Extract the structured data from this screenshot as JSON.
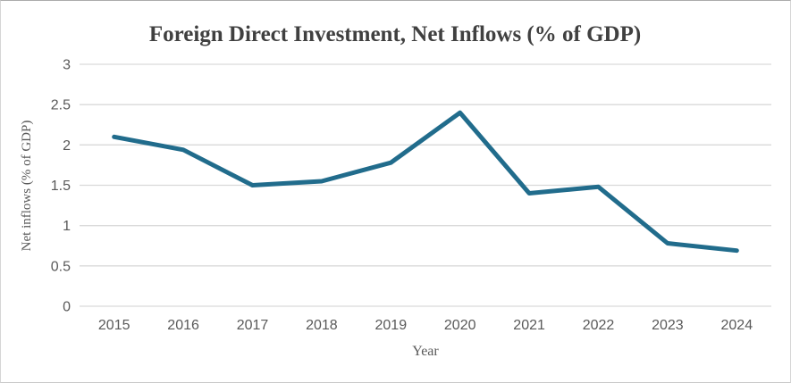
{
  "chart_data": {
    "type": "line",
    "title": "Foreign Direct Investment, Net Inflows (% of GDP)",
    "xlabel": "Year",
    "ylabel": "Net inflows (% of GDP)",
    "categories": [
      "2015",
      "2016",
      "2017",
      "2018",
      "2019",
      "2020",
      "2021",
      "2022",
      "2023",
      "2024"
    ],
    "series": [
      {
        "name": "Net inflows (% of GDP)",
        "values": [
          2.1,
          1.94,
          1.5,
          1.55,
          1.78,
          2.4,
          1.4,
          1.48,
          0.78,
          0.69
        ]
      }
    ],
    "ylim": [
      0,
      3
    ],
    "ytick_step": 0.5,
    "ytick_labels": [
      "0",
      "0.5",
      "1",
      "1.5",
      "2",
      "2.5",
      "3"
    ],
    "grid": true,
    "legend_position": "none",
    "colors": {
      "line": "#216c8c",
      "gridline": "#d9d9d9",
      "tick_label": "#595959",
      "axis_title": "#595959",
      "title": "#404040",
      "background": "#ffffff",
      "frame_border": "#ababab"
    }
  }
}
